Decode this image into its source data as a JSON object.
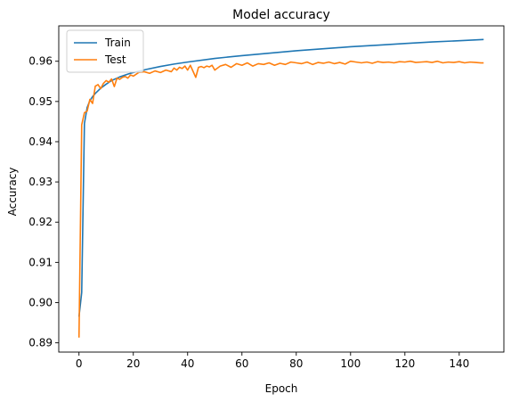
{
  "chart_data": {
    "type": "line",
    "title": "Model accuracy",
    "xlabel": "Epoch",
    "ylabel": "Accuracy",
    "xlim": [
      -7.45,
      156.45
    ],
    "ylim": [
      0.8877,
      0.9688
    ],
    "xticks": [
      0,
      20,
      40,
      60,
      80,
      100,
      120,
      140
    ],
    "yticks": [
      0.89,
      0.9,
      0.91,
      0.92,
      0.93,
      0.94,
      0.95,
      0.96
    ],
    "ytick_labels": [
      "0.89",
      "0.90",
      "0.91",
      "0.92",
      "0.93",
      "0.94",
      "0.95",
      "0.96"
    ],
    "legend_position": "top-left",
    "grid": false,
    "series": [
      {
        "name": "Train",
        "color": "#1f77b4",
        "x": [
          0,
          1,
          2,
          3,
          4,
          5,
          6,
          8,
          10,
          12,
          15,
          18,
          20,
          25,
          30,
          35,
          40,
          50,
          60,
          70,
          80,
          90,
          100,
          110,
          120,
          130,
          140,
          149
        ],
        "values": [
          0.8965,
          0.9025,
          0.9445,
          0.9485,
          0.9502,
          0.9512,
          0.952,
          0.9533,
          0.9543,
          0.9552,
          0.9561,
          0.9568,
          0.9572,
          0.958,
          0.9587,
          0.9593,
          0.9598,
          0.9607,
          0.9614,
          0.962,
          0.9626,
          0.9631,
          0.9636,
          0.964,
          0.9644,
          0.9648,
          0.9651,
          0.9654
        ]
      },
      {
        "name": "Test",
        "color": "#ff7f0e",
        "x": [
          0,
          1,
          2,
          3,
          4,
          5,
          6,
          7,
          8,
          9,
          10,
          11,
          12,
          13,
          14,
          15,
          16,
          17,
          18,
          19,
          20,
          22,
          24,
          26,
          28,
          30,
          32,
          34,
          35,
          36,
          37,
          38,
          39,
          40,
          41,
          42,
          43,
          44,
          45,
          46,
          47,
          48,
          49,
          50,
          52,
          54,
          56,
          58,
          60,
          62,
          64,
          66,
          68,
          70,
          72,
          74,
          76,
          78,
          80,
          82,
          84,
          86,
          88,
          90,
          92,
          94,
          96,
          98,
          100,
          102,
          104,
          106,
          108,
          110,
          112,
          114,
          116,
          118,
          120,
          122,
          124,
          126,
          128,
          130,
          132,
          134,
          136,
          138,
          140,
          142,
          144,
          146,
          148,
          149
        ],
        "values": [
          0.8913,
          0.9442,
          0.9472,
          0.9476,
          0.9505,
          0.9495,
          0.9538,
          0.9542,
          0.9532,
          0.9545,
          0.9552,
          0.9548,
          0.9556,
          0.9537,
          0.9558,
          0.9555,
          0.956,
          0.9562,
          0.9558,
          0.9566,
          0.9563,
          0.9572,
          0.9574,
          0.957,
          0.9576,
          0.9572,
          0.9578,
          0.9574,
          0.9583,
          0.9578,
          0.9585,
          0.9582,
          0.9588,
          0.9578,
          0.959,
          0.9575,
          0.956,
          0.9585,
          0.9587,
          0.9584,
          0.9588,
          0.9586,
          0.959,
          0.9578,
          0.9588,
          0.9592,
          0.9585,
          0.9594,
          0.959,
          0.9596,
          0.9588,
          0.9594,
          0.9592,
          0.9596,
          0.959,
          0.9595,
          0.9592,
          0.9598,
          0.9596,
          0.9594,
          0.9598,
          0.9592,
          0.9597,
          0.9595,
          0.9598,
          0.9594,
          0.9597,
          0.9593,
          0.96,
          0.9598,
          0.9596,
          0.9598,
          0.9595,
          0.9599,
          0.9597,
          0.9598,
          0.9596,
          0.9599,
          0.9598,
          0.96,
          0.9597,
          0.9598,
          0.9599,
          0.9597,
          0.96,
          0.9596,
          0.9598,
          0.9597,
          0.9599,
          0.9596,
          0.9598,
          0.9597,
          0.9596,
          0.9596
        ]
      }
    ]
  }
}
